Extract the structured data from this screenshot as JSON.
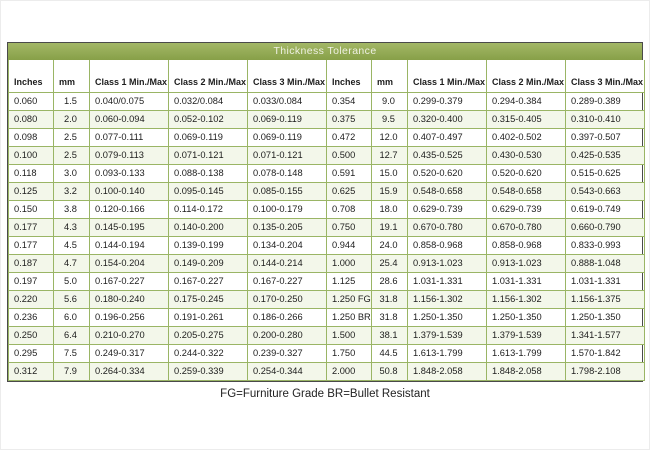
{
  "chart_data": {
    "type": "table",
    "title": "Thickness Tolerance",
    "footnote": "FG=Furniture Grade BR=Bullet Resistant",
    "columns": [
      "Inches",
      "mm",
      "Class 1 Min./Max",
      "Class 2 Min./Max",
      "Class 3 Min./Max"
    ],
    "rows_left": [
      [
        "0.060",
        "1.5",
        "0.040/0.075",
        "0.032/0.084",
        "0.033/0.084"
      ],
      [
        "0.080",
        "2.0",
        "0.060-0.094",
        "0.052-0.102",
        "0.069-0.119"
      ],
      [
        "0.098",
        "2.5",
        "0.077-0.111",
        "0.069-0.119",
        "0.069-0.119"
      ],
      [
        "0.100",
        "2.5",
        "0.079-0.113",
        "0.071-0.121",
        "0.071-0.121"
      ],
      [
        "0.118",
        "3.0",
        "0.093-0.133",
        "0.088-0.138",
        "0.078-0.148"
      ],
      [
        "0.125",
        "3.2",
        "0.100-0.140",
        "0.095-0.145",
        "0.085-0.155"
      ],
      [
        "0.150",
        "3.8",
        "0.120-0.166",
        "0.114-0.172",
        "0.100-0.179"
      ],
      [
        "0.177",
        "4.3",
        "0.145-0.195",
        "0.140-0.200",
        "0.135-0.205"
      ],
      [
        "0.177",
        "4.5",
        "0.144-0.194",
        "0.139-0.199",
        "0.134-0.204"
      ],
      [
        "0.187",
        "4.7",
        "0.154-0.204",
        "0.149-0.209",
        "0.144-0.214"
      ],
      [
        "0.197",
        "5.0",
        "0.167-0.227",
        "0.167-0.227",
        "0.167-0.227"
      ],
      [
        "0.220",
        "5.6",
        "0.180-0.240",
        "0.175-0.245",
        "0.170-0.250"
      ],
      [
        "0.236",
        "6.0",
        "0.196-0.256",
        "0.191-0.261",
        "0.186-0.266"
      ],
      [
        "0.250",
        "6.4",
        "0.210-0.270",
        "0.205-0.275",
        "0.200-0.280"
      ],
      [
        "0.295",
        "7.5",
        "0.249-0.317",
        "0.244-0.322",
        "0.239-0.327"
      ],
      [
        "0.312",
        "7.9",
        "0.264-0.334",
        "0.259-0.339",
        "0.254-0.344"
      ]
    ],
    "rows_right": [
      [
        "0.354",
        "9.0",
        "0.299-0.379",
        "0.294-0.384",
        "0.289-0.389"
      ],
      [
        "0.375",
        "9.5",
        "0.320-0.400",
        "0.315-0.405",
        "0.310-0.410"
      ],
      [
        "0.472",
        "12.0",
        "0.407-0.497",
        "0.402-0.502",
        "0.397-0.507"
      ],
      [
        "0.500",
        "12.7",
        "0.435-0.525",
        "0.430-0.530",
        "0.425-0.535"
      ],
      [
        "0.591",
        "15.0",
        "0.520-0.620",
        "0.520-0.620",
        "0.515-0.625"
      ],
      [
        "0.625",
        "15.9",
        "0.548-0.658",
        "0.548-0.658",
        "0.543-0.663"
      ],
      [
        "0.708",
        "18.0",
        "0.629-0.739",
        "0.629-0.739",
        "0.619-0.749"
      ],
      [
        "0.750",
        "19.1",
        "0.670-0.780",
        "0.670-0.780",
        "0.660-0.790"
      ],
      [
        "0.944",
        "24.0",
        "0.858-0.968",
        "0.858-0.968",
        "0.833-0.993"
      ],
      [
        "1.000",
        "25.4",
        "0.913-1.023",
        "0.913-1.023",
        "0.888-1.048"
      ],
      [
        "1.125",
        "28.6",
        "1.031-1.331",
        "1.031-1.331",
        "1.031-1.331"
      ],
      [
        "1.250 FG",
        "31.8",
        "1.156-1.302",
        "1.156-1.302",
        "1.156-1.375"
      ],
      [
        "1.250 BR",
        "31.8",
        "1.250-1.350",
        "1.250-1.350",
        "1.250-1.350"
      ],
      [
        "1.500",
        "38.1",
        "1.379-1.539",
        "1.379-1.539",
        "1.341-1.577"
      ],
      [
        "1.750",
        "44.5",
        "1.613-1.799",
        "1.613-1.799",
        "1.570-1.842"
      ],
      [
        "2.000",
        "50.8",
        "1.848-2.058",
        "1.848-2.058",
        "1.798-2.108"
      ]
    ],
    "colors": {
      "title_bar_bg": "#8CA64D",
      "grid_line": "#9ab565",
      "row_alt_bg": "#f3f7ea"
    }
  }
}
